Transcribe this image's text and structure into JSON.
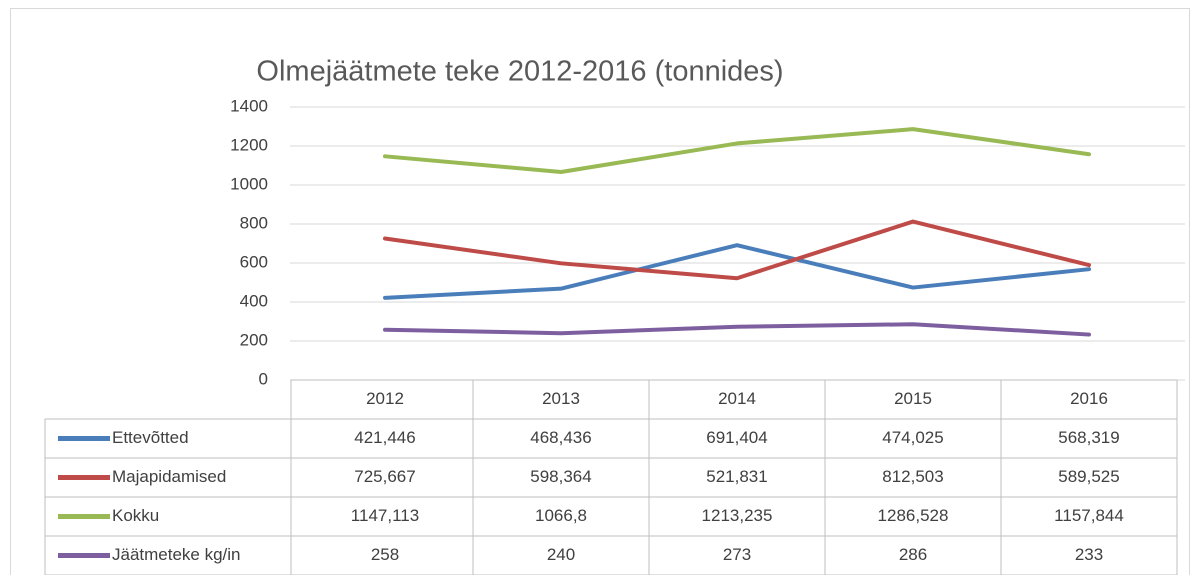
{
  "chart_data": {
    "type": "line",
    "title": "Olmejäätmete teke 2012-2016 (tonnides)",
    "categories": [
      "2012",
      "2013",
      "2014",
      "2015",
      "2016"
    ],
    "series": [
      {
        "name": "Ettevõtted",
        "color": "#4a7ebb",
        "values": [
          421.446,
          468.436,
          691.404,
          474.025,
          568.319
        ],
        "value_labels": [
          "421,446",
          "468,436",
          "691,404",
          "474,025",
          "568,319"
        ]
      },
      {
        "name": "Majapidamised",
        "color": "#be4b48",
        "values": [
          725.667,
          598.364,
          521.831,
          812.503,
          589.525
        ],
        "value_labels": [
          "725,667",
          "598,364",
          "521,831",
          "812,503",
          "589,525"
        ]
      },
      {
        "name": "Kokku",
        "color": "#98b954",
        "values": [
          1147.113,
          1066.8,
          1213.235,
          1286.528,
          1157.844
        ],
        "value_labels": [
          "1147,113",
          "1066,8",
          "1213,235",
          "1286,528",
          "1157,844"
        ]
      },
      {
        "name": "Jäätmeteke kg/in",
        "color": "#7d5fa0",
        "values": [
          258,
          240,
          273,
          286,
          233
        ],
        "value_labels": [
          "258",
          "240",
          "273",
          "286",
          "233"
        ]
      }
    ],
    "ylim": [
      0,
      1400
    ],
    "yticks": [
      0,
      200,
      400,
      600,
      800,
      1000,
      1200,
      1400
    ],
    "grid": true,
    "data_table": true
  }
}
